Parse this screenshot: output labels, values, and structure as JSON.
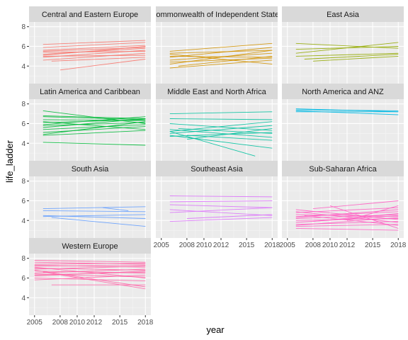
{
  "chart_data": {
    "type": "line",
    "xlabel": "year",
    "ylabel": "life_ladder",
    "xlim": [
      2005,
      2018
    ],
    "ylim": [
      2.5,
      8.2
    ],
    "x_ticks": [
      2005,
      2008,
      2010,
      2012,
      2015,
      2018
    ],
    "x_tick_labels": [
      "2005",
      "2008",
      "2010",
      "2012",
      "2015",
      "2018"
    ],
    "y_ticks": [
      4,
      6,
      8
    ],
    "y_tick_labels": [
      "4",
      "6",
      "8"
    ],
    "grid": true,
    "facets": [
      {
        "label": "Central and Eastern Europe",
        "color": "#F8766D",
        "lines": [
          [
            [
              2006,
              6.2
            ],
            [
              2018,
              6.6
            ]
          ],
          [
            [
              2006,
              5.9
            ],
            [
              2018,
              6.4
            ]
          ],
          [
            [
              2006,
              5.6
            ],
            [
              2018,
              6.1
            ]
          ],
          [
            [
              2006,
              5.5
            ],
            [
              2018,
              5.9
            ]
          ],
          [
            [
              2006,
              5.2
            ],
            [
              2018,
              5.8
            ]
          ],
          [
            [
              2006,
              5.4
            ],
            [
              2018,
              5.5
            ]
          ],
          [
            [
              2006,
              4.9
            ],
            [
              2018,
              5.6
            ]
          ],
          [
            [
              2006,
              5.1
            ],
            [
              2018,
              6.0
            ]
          ],
          [
            [
              2006,
              4.6
            ],
            [
              2018,
              5.3
            ]
          ],
          [
            [
              2006,
              5.0
            ],
            [
              2018,
              5.1
            ]
          ],
          [
            [
              2007,
              4.5
            ],
            [
              2018,
              4.9
            ]
          ],
          [
            [
              2008,
              3.6
            ],
            [
              2018,
              4.7
            ]
          ]
        ]
      },
      {
        "label": "Commonwealth of Independent States",
        "color": "#D39200",
        "lines": [
          [
            [
              2006,
              5.3
            ],
            [
              2018,
              5.6
            ]
          ],
          [
            [
              2006,
              4.9
            ],
            [
              2018,
              5.9
            ]
          ],
          [
            [
              2006,
              4.2
            ],
            [
              2018,
              5.6
            ]
          ],
          [
            [
              2006,
              4.6
            ],
            [
              2018,
              5.3
            ]
          ],
          [
            [
              2006,
              5.0
            ],
            [
              2018,
              4.9
            ]
          ],
          [
            [
              2006,
              5.5
            ],
            [
              2018,
              6.3
            ]
          ],
          [
            [
              2006,
              4.4
            ],
            [
              2018,
              4.8
            ]
          ],
          [
            [
              2006,
              3.8
            ],
            [
              2018,
              4.6
            ]
          ],
          [
            [
              2006,
              5.2
            ],
            [
              2018,
              4.2
            ]
          ],
          [
            [
              2007,
              4.0
            ],
            [
              2018,
              5.0
            ]
          ]
        ]
      },
      {
        "label": "East Asia",
        "color": "#93AA00",
        "lines": [
          [
            [
              2006,
              6.3
            ],
            [
              2018,
              5.8
            ]
          ],
          [
            [
              2006,
              5.3
            ],
            [
              2018,
              6.4
            ]
          ],
          [
            [
              2006,
              5.7
            ],
            [
              2018,
              6.0
            ]
          ],
          [
            [
              2006,
              5.0
            ],
            [
              2018,
              5.3
            ]
          ],
          [
            [
              2007,
              4.7
            ],
            [
              2018,
              5.2
            ]
          ],
          [
            [
              2008,
              4.5
            ],
            [
              2018,
              5.0
            ]
          ]
        ]
      },
      {
        "label": "Latin America and Caribbean",
        "color": "#00BA38",
        "lines": [
          [
            [
              2006,
              7.3
            ],
            [
              2018,
              6.0
            ]
          ],
          [
            [
              2006,
              6.8
            ],
            [
              2018,
              6.5
            ]
          ],
          [
            [
              2006,
              6.7
            ],
            [
              2018,
              6.4
            ]
          ],
          [
            [
              2006,
              6.4
            ],
            [
              2018,
              6.3
            ]
          ],
          [
            [
              2006,
              6.1
            ],
            [
              2018,
              6.4
            ]
          ],
          [
            [
              2006,
              5.8
            ],
            [
              2018,
              6.1
            ]
          ],
          [
            [
              2006,
              5.6
            ],
            [
              2018,
              6.5
            ]
          ],
          [
            [
              2006,
              5.4
            ],
            [
              2018,
              5.9
            ]
          ],
          [
            [
              2006,
              5.1
            ],
            [
              2018,
              5.7
            ]
          ],
          [
            [
              2006,
              4.8
            ],
            [
              2018,
              5.3
            ]
          ],
          [
            [
              2006,
              6.2
            ],
            [
              2018,
              5.4
            ]
          ],
          [
            [
              2006,
              5.9
            ],
            [
              2018,
              6.7
            ]
          ],
          [
            [
              2006,
              4.9
            ],
            [
              2018,
              6.2
            ]
          ],
          [
            [
              2006,
              4.1
            ],
            [
              2018,
              3.8
            ]
          ]
        ]
      },
      {
        "label": "Middle East and North Africa",
        "color": "#00C19F",
        "lines": [
          [
            [
              2006,
              7.0
            ],
            [
              2018,
              7.2
            ]
          ],
          [
            [
              2006,
              6.5
            ],
            [
              2018,
              6.4
            ]
          ],
          [
            [
              2006,
              5.2
            ],
            [
              2018,
              6.2
            ]
          ],
          [
            [
              2006,
              5.0
            ],
            [
              2018,
              5.8
            ]
          ],
          [
            [
              2006,
              5.4
            ],
            [
              2018,
              4.6
            ]
          ],
          [
            [
              2006,
              4.7
            ],
            [
              2018,
              5.1
            ]
          ],
          [
            [
              2006,
              6.0
            ],
            [
              2018,
              5.3
            ]
          ],
          [
            [
              2006,
              5.2
            ],
            [
              2016,
              2.7
            ]
          ],
          [
            [
              2006,
              4.8
            ],
            [
              2018,
              3.5
            ]
          ],
          [
            [
              2007,
              5.5
            ],
            [
              2018,
              5.0
            ]
          ],
          [
            [
              2008,
              4.4
            ],
            [
              2018,
              5.5
            ]
          ],
          [
            [
              2008,
              4.8
            ],
            [
              2018,
              4.3
            ]
          ]
        ]
      },
      {
        "label": "North America and ANZ",
        "color": "#00B9E3",
        "lines": [
          [
            [
              2006,
              7.5
            ],
            [
              2018,
              7.2
            ]
          ],
          [
            [
              2006,
              7.4
            ],
            [
              2018,
              7.3
            ]
          ],
          [
            [
              2006,
              7.3
            ],
            [
              2018,
              6.9
            ]
          ],
          [
            [
              2006,
              7.2
            ],
            [
              2018,
              7.2
            ]
          ]
        ]
      },
      {
        "label": "South Asia",
        "color": "#619CFF",
        "lines": [
          [
            [
              2006,
              5.2
            ],
            [
              2018,
              5.4
            ]
          ],
          [
            [
              2006,
              5.0
            ],
            [
              2018,
              4.9
            ]
          ],
          [
            [
              2006,
              4.4
            ],
            [
              2018,
              4.6
            ]
          ],
          [
            [
              2006,
              4.5
            ],
            [
              2018,
              4.2
            ]
          ],
          [
            [
              2007,
              4.3
            ],
            [
              2018,
              3.4
            ]
          ],
          [
            [
              2013,
              5.3
            ],
            [
              2016,
              5.0
            ]
          ]
        ]
      },
      {
        "label": "Southeast Asia",
        "color": "#DB72FB",
        "lines": [
          [
            [
              2006,
              6.5
            ],
            [
              2018,
              6.4
            ]
          ],
          [
            [
              2006,
              5.9
            ],
            [
              2018,
              6.0
            ]
          ],
          [
            [
              2006,
              5.6
            ],
            [
              2018,
              5.3
            ]
          ],
          [
            [
              2006,
              5.1
            ],
            [
              2018,
              4.5
            ]
          ],
          [
            [
              2006,
              4.8
            ],
            [
              2018,
              5.3
            ]
          ],
          [
            [
              2006,
              3.9
            ],
            [
              2018,
              4.3
            ]
          ],
          [
            [
              2008,
              4.2
            ],
            [
              2018,
              4.6
            ]
          ]
        ]
      },
      {
        "label": "Sub-Saharan Africa",
        "color": "#FF61C3",
        "lines": [
          [
            [
              2006,
              5.1
            ],
            [
              2018,
              4.1
            ]
          ],
          [
            [
              2006,
              4.8
            ],
            [
              2018,
              5.3
            ]
          ],
          [
            [
              2006,
              4.6
            ],
            [
              2018,
              4.4
            ]
          ],
          [
            [
              2006,
              4.4
            ],
            [
              2018,
              4.9
            ]
          ],
          [
            [
              2006,
              4.2
            ],
            [
              2018,
              4.6
            ]
          ],
          [
            [
              2006,
              4.0
            ],
            [
              2018,
              4.2
            ]
          ],
          [
            [
              2006,
              3.8
            ],
            [
              2018,
              4.5
            ]
          ],
          [
            [
              2006,
              3.6
            ],
            [
              2018,
              3.9
            ]
          ],
          [
            [
              2006,
              3.4
            ],
            [
              2018,
              3.6
            ]
          ],
          [
            [
              2006,
              3.2
            ],
            [
              2018,
              3.0
            ]
          ],
          [
            [
              2006,
              4.9
            ],
            [
              2018,
              3.8
            ]
          ],
          [
            [
              2006,
              4.3
            ],
            [
              2018,
              5.1
            ]
          ],
          [
            [
              2006,
              3.5
            ],
            [
              2018,
              4.3
            ]
          ],
          [
            [
              2007,
              4.5
            ],
            [
              2018,
              3.5
            ]
          ],
          [
            [
              2008,
              3.9
            ],
            [
              2018,
              4.7
            ]
          ],
          [
            [
              2008,
              5.2
            ],
            [
              2018,
              6.0
            ]
          ],
          [
            [
              2010,
              5.5
            ],
            [
              2018,
              3.2
            ]
          ],
          [
            [
              2012,
              4.0
            ],
            [
              2018,
              5.5
            ]
          ]
        ]
      },
      {
        "label": "Western Europe",
        "color": "#FF66A8",
        "lines": [
          [
            [
              2005,
              7.8
            ],
            [
              2018,
              7.6
            ]
          ],
          [
            [
              2005,
              7.6
            ],
            [
              2018,
              7.4
            ]
          ],
          [
            [
              2005,
              7.4
            ],
            [
              2018,
              7.5
            ]
          ],
          [
            [
              2005,
              7.3
            ],
            [
              2018,
              7.1
            ]
          ],
          [
            [
              2005,
              7.2
            ],
            [
              2018,
              7.3
            ]
          ],
          [
            [
              2005,
              7.0
            ],
            [
              2018,
              6.8
            ]
          ],
          [
            [
              2005,
              6.9
            ],
            [
              2018,
              7.2
            ]
          ],
          [
            [
              2005,
              6.7
            ],
            [
              2018,
              6.5
            ]
          ],
          [
            [
              2005,
              6.5
            ],
            [
              2018,
              6.9
            ]
          ],
          [
            [
              2005,
              6.4
            ],
            [
              2018,
              6.1
            ]
          ],
          [
            [
              2005,
              6.2
            ],
            [
              2018,
              6.7
            ]
          ],
          [
            [
              2005,
              6.0
            ],
            [
              2018,
              5.7
            ]
          ],
          [
            [
              2005,
              5.8
            ],
            [
              2018,
              6.3
            ]
          ],
          [
            [
              2005,
              6.8
            ],
            [
              2018,
              5.1
            ]
          ],
          [
            [
              2006,
              6.6
            ],
            [
              2018,
              4.9
            ]
          ],
          [
            [
              2007,
              5.3
            ],
            [
              2018,
              5.3
            ]
          ],
          [
            [
              2005,
              7.1
            ],
            [
              2018,
              6.0
            ]
          ],
          [
            [
              2005,
              6.3
            ],
            [
              2018,
              6.6
            ]
          ]
        ]
      }
    ]
  }
}
